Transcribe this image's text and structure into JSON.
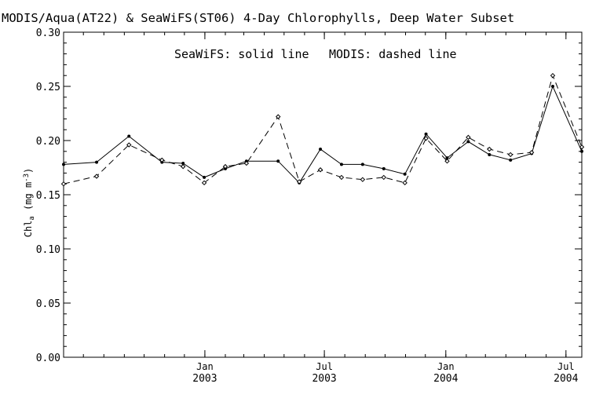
{
  "chart_data": {
    "type": "line",
    "title": "MODIS/Aqua(AT22) & SeaWiFS(ST06) 4-Day Chlorophylls, Deep Water Subset",
    "annotation_left": "SeaWiFS: solid line",
    "annotation_right": "MODIS: dashed line",
    "ylabel": "Chl",
    "ylabel_sub": "a",
    "ylabel_units_open": " (mg m",
    "ylabel_units_sup": "-3",
    "ylabel_units_close": ")",
    "xlabel": "",
    "ylim": [
      0.0,
      0.3
    ],
    "xlim": [
      "2002-06-01",
      "2004-07-25"
    ],
    "yticks": [
      "0.00",
      "0.05",
      "0.10",
      "0.15",
      "0.20",
      "0.25",
      "0.30"
    ],
    "xticks": [
      {
        "date": "2003-01-01",
        "month": "Jan",
        "year": "2003"
      },
      {
        "date": "2003-07-01",
        "month": "Jul",
        "year": "2003"
      },
      {
        "date": "2004-01-01",
        "month": "Jan",
        "year": "2004"
      },
      {
        "date": "2004-07-01",
        "month": "Jul",
        "year": "2004"
      }
    ],
    "grid": false,
    "series": [
      {
        "name": "SeaWiFS",
        "style": "solid",
        "x": [
          "2002-06-01",
          "2002-07-21",
          "2002-09-08",
          "2002-10-28",
          "2002-11-29",
          "2002-12-31",
          "2003-02-01",
          "2003-03-05",
          "2003-04-22",
          "2003-05-24",
          "2003-06-25",
          "2003-07-27",
          "2003-08-28",
          "2003-09-29",
          "2003-10-31",
          "2003-12-02",
          "2004-01-03",
          "2004-02-04",
          "2004-03-07",
          "2004-04-08",
          "2004-05-10",
          "2004-06-11",
          "2004-07-25"
        ],
        "values": [
          0.178,
          0.18,
          0.204,
          0.18,
          0.179,
          0.166,
          0.174,
          0.181,
          0.181,
          0.161,
          0.192,
          0.178,
          0.178,
          0.174,
          0.169,
          0.206,
          0.184,
          0.199,
          0.187,
          0.182,
          0.188,
          0.25,
          0.19
        ]
      },
      {
        "name": "MODIS",
        "style": "dashed",
        "x": [
          "2002-06-01",
          "2002-07-21",
          "2002-09-08",
          "2002-10-28",
          "2002-11-29",
          "2002-12-31",
          "2003-02-01",
          "2003-03-05",
          "2003-04-22",
          "2003-05-24",
          "2003-06-25",
          "2003-07-27",
          "2003-08-28",
          "2003-09-29",
          "2003-10-31",
          "2003-12-02",
          "2004-01-03",
          "2004-02-04",
          "2004-03-07",
          "2004-04-08",
          "2004-05-10",
          "2004-06-11",
          "2004-07-25"
        ],
        "values": [
          0.16,
          0.167,
          0.196,
          0.182,
          0.176,
          0.161,
          0.176,
          0.179,
          0.222,
          0.162,
          0.173,
          0.166,
          0.164,
          0.166,
          0.161,
          0.202,
          0.181,
          0.203,
          0.192,
          0.187,
          0.189,
          0.26,
          0.194
        ]
      }
    ]
  }
}
